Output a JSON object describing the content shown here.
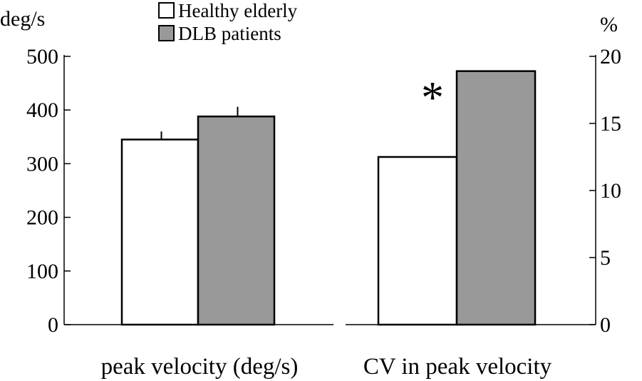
{
  "chart_data": {
    "type": "bar",
    "legend": [
      {
        "name": "Healthy elderly",
        "color": "#ffffff"
      },
      {
        "name": "DLB patients",
        "color": "#999999"
      }
    ],
    "panels": [
      {
        "label": "peak velocity (deg/s)",
        "axis": "left",
        "unit": "deg/s",
        "ylim": [
          0,
          500
        ],
        "yticks": [
          "0",
          "100",
          "200",
          "300",
          "400",
          "500"
        ],
        "values": [
          345,
          388
        ],
        "errors": [
          15,
          18
        ]
      },
      {
        "label": "CV in peak velocity",
        "axis": "right",
        "unit": "%",
        "ylim": [
          0,
          20
        ],
        "yticks": [
          "0",
          "5",
          "10",
          "15",
          "20"
        ],
        "values": [
          12.5,
          18.9
        ],
        "errors": [
          0,
          0
        ],
        "annotation": "*"
      }
    ]
  }
}
